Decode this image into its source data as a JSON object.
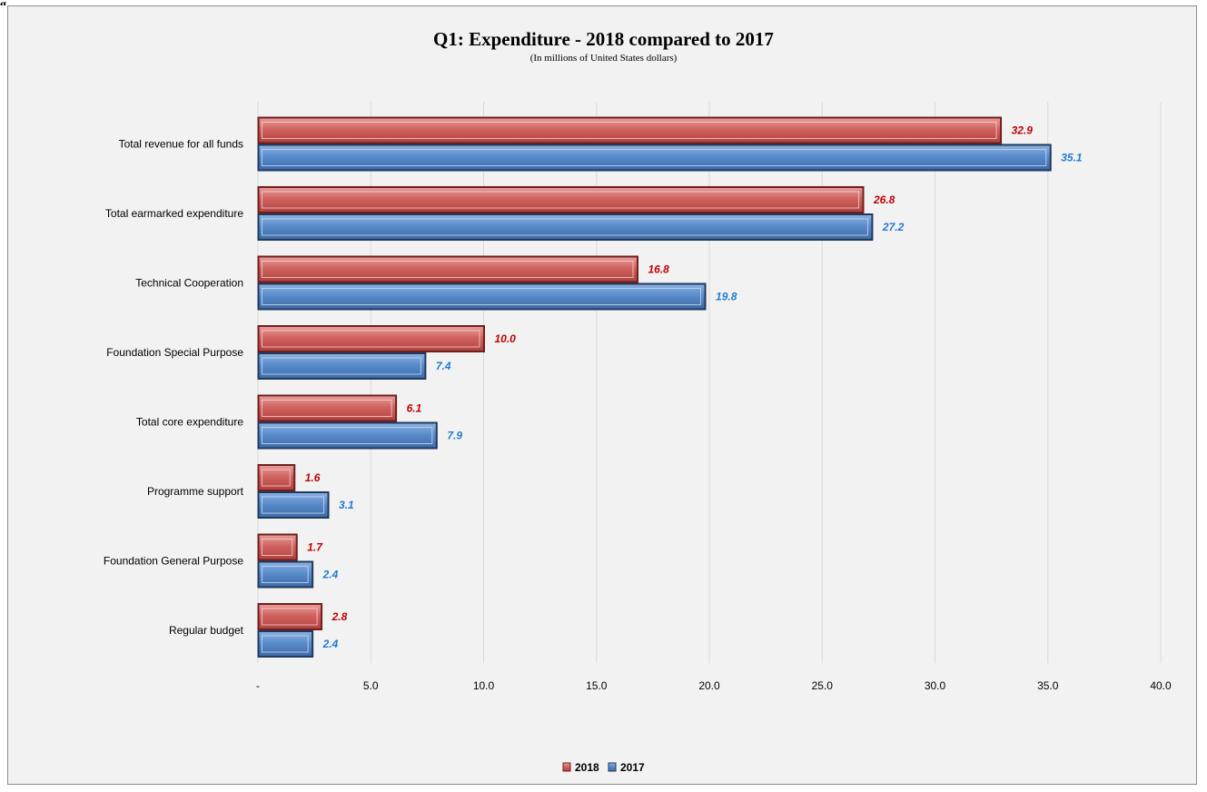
{
  "corner_text": "g",
  "chart_data": {
    "type": "bar",
    "orientation": "horizontal",
    "title": "Q1: Expenditure - 2018 compared to 2017",
    "subtitle": "(In millions of United States dollars)",
    "categories": [
      "Total revenue for all funds",
      "Total earmarked expenditure",
      "Technical Cooperation",
      "Foundation Special Purpose",
      "Total core expenditure",
      "Programme support",
      "Foundation General Purpose",
      "Regular budget"
    ],
    "series": [
      {
        "name": "2018",
        "color": "#c0504d",
        "label_color": "#c00000",
        "values": [
          32.9,
          26.8,
          16.8,
          10.0,
          6.1,
          1.6,
          1.7,
          2.8
        ],
        "labels": [
          "32.9",
          "26.8",
          "16.8",
          "10.0",
          "6.1",
          "1.6",
          "1.7",
          "2.8"
        ]
      },
      {
        "name": "2017",
        "color": "#4f81bd",
        "label_color": "#1f7ad1",
        "values": [
          35.1,
          27.2,
          19.8,
          7.4,
          7.9,
          3.1,
          2.4,
          2.4
        ],
        "labels": [
          "35.1",
          "27.2",
          "19.8",
          "7.4",
          "7.9",
          "3.1",
          "2.4",
          "2.4"
        ]
      }
    ],
    "xlim": [
      0,
      40
    ],
    "xticks": [
      0,
      5,
      10,
      15,
      20,
      25,
      30,
      35,
      40
    ],
    "xtick_labels": [
      "-",
      "5.0",
      "10.0",
      "15.0",
      "20.0",
      "25.0",
      "30.0",
      "35.0",
      "40.0"
    ],
    "grid": "vertical",
    "legend": "bottom-center"
  }
}
